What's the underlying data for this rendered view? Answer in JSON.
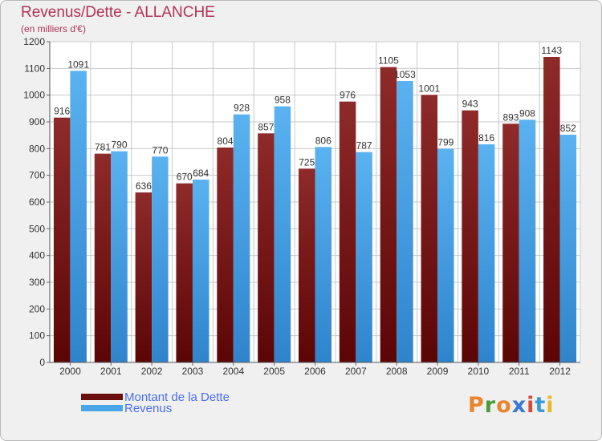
{
  "title": "Revenus/Dette - ALLANCHE",
  "subtitle": "(en milliers d'€)",
  "logo": {
    "text": "Proxiti",
    "letters": [
      "P",
      "r",
      "o",
      "x",
      "i",
      "t",
      "i"
    ]
  },
  "colors": {
    "debt": "#7a1414",
    "revenue": "#4aa4e8",
    "accent": "#b0335a",
    "legend_text": "#4a6df0",
    "logo": [
      "#e8852d",
      "#4a9a3a",
      "#e8852d",
      "#3a78d8",
      "#d84a3a",
      "#3a9ad8",
      "#e8b82d"
    ]
  },
  "legend": [
    {
      "label": "Montant de la Dette",
      "color": "#6b0e0e"
    },
    {
      "label": "Revenus",
      "color": "#4aa4e8"
    }
  ],
  "chart_data": {
    "type": "bar",
    "title": "Revenus/Dette - ALLANCHE",
    "subtitle": "(en milliers d'€)",
    "xlabel": "",
    "ylabel": "",
    "ylim": [
      0,
      1200
    ],
    "yticks": [
      0,
      100,
      200,
      300,
      400,
      500,
      600,
      700,
      800,
      900,
      1000,
      1100,
      1200
    ],
    "grid": true,
    "legend_position": "bottom-left",
    "categories": [
      "2000",
      "2001",
      "2002",
      "2003",
      "2004",
      "2005",
      "2006",
      "2007",
      "2008",
      "2009",
      "2010",
      "2011",
      "2012"
    ],
    "series": [
      {
        "name": "Montant de la Dette",
        "values": [
          916,
          781,
          636,
          670,
          804,
          857,
          725,
          976,
          1105,
          1001,
          943,
          893,
          1143
        ]
      },
      {
        "name": "Revenus",
        "values": [
          1091,
          790,
          770,
          684,
          928,
          958,
          806,
          787,
          1053,
          799,
          816,
          908,
          852
        ]
      }
    ]
  }
}
